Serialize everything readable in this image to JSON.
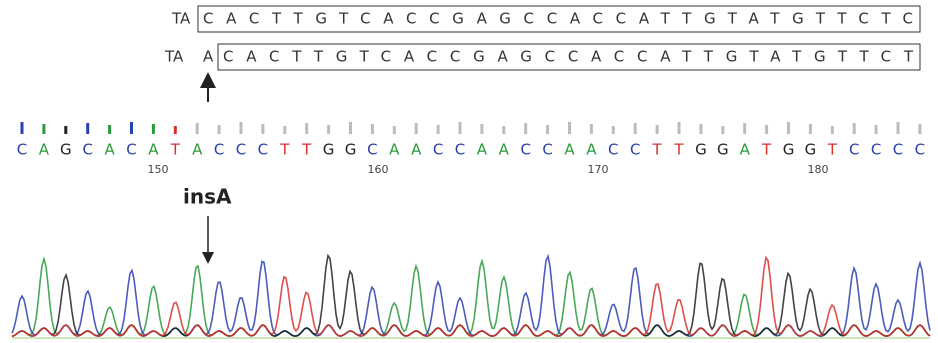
{
  "reference": {
    "prefix": "TA",
    "sequence": "CACTTGTCACCGAGCCACCATTGTATGTTCTC"
  },
  "mutant": {
    "prefix": "TA",
    "insertion": "A",
    "sequence": "CACTTGTCACCGAGCCACCATTGTATGTTCT"
  },
  "mutation_label": "insA",
  "base_calls": [
    "C",
    "A",
    "G",
    "C",
    "A",
    "C",
    "A",
    "T",
    "A",
    "C",
    "C",
    "C",
    "T",
    "T",
    "G",
    "G",
    "C",
    "A",
    "A",
    "C",
    "C",
    "A",
    "A",
    "C",
    "C",
    "A",
    "A",
    "C",
    "C",
    "T",
    "T",
    "G",
    "G",
    "A",
    "T",
    "G",
    "G",
    "T",
    "C",
    "C",
    "C",
    "C"
  ],
  "positions": [
    "150",
    "160",
    "170",
    "180"
  ]
}
